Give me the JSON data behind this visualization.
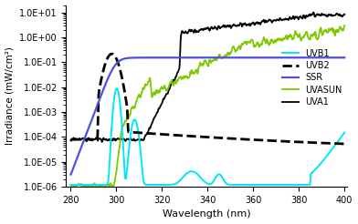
{
  "xlabel": "Wavelength (nm)",
  "ylabel": "Irradiance (mW/cm²)",
  "xlim": [
    278,
    401
  ],
  "ylim_log": [
    1e-06,
    20.0
  ],
  "xticks": [
    280,
    300,
    320,
    340,
    360,
    380,
    400
  ],
  "ytick_labels": [
    "1.0E-06",
    "1.0E-05",
    "1.0E-04",
    "1.0E-03",
    "1.0E-02",
    "1.0E-01",
    "1.0E+00",
    "1.0E+01"
  ],
  "background_color": "#ffffff",
  "uvb1_color": "#00e5ff",
  "uvb2_color": "#000000",
  "ssr_color": "#5050e0",
  "uvasun_color": "#7ec800",
  "uva1_color": "#000000"
}
